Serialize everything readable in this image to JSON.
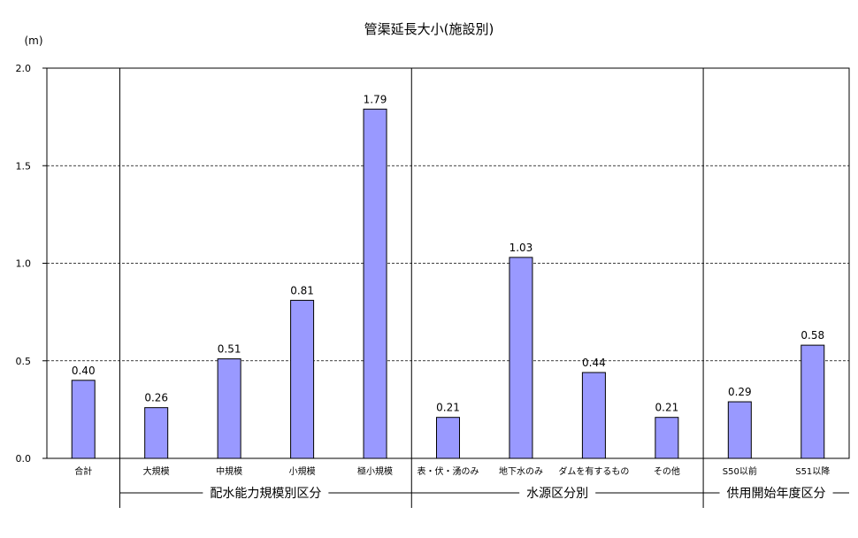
{
  "chart_data": {
    "type": "bar",
    "title": "管渠延長大小(施設別)",
    "unit_label": "(m)",
    "ylim": [
      0,
      2.0
    ],
    "y_ticks": [
      "0.0",
      "0.5",
      "1.0",
      "1.5",
      "2.0"
    ],
    "grid": "dashed horizontal",
    "colors": {
      "bar": "#9999ff",
      "bar_edge": "#000000",
      "grid": "#000000"
    },
    "categories": [
      "合計",
      "大規模",
      "中規模",
      "小規模",
      "極小規模",
      "表・伏・湧のみ",
      "地下水のみ",
      "ダムを有するもの",
      "その他",
      "S50以前",
      "S51以降"
    ],
    "values": [
      0.4,
      0.26,
      0.51,
      0.81,
      1.79,
      0.21,
      1.03,
      0.44,
      0.21,
      0.29,
      0.58
    ],
    "value_labels": [
      "0.40",
      "0.26",
      "0.51",
      "0.81",
      "1.79",
      "0.21",
      "1.03",
      "0.44",
      "0.21",
      "0.29",
      "0.58"
    ],
    "groups": [
      {
        "name": "配水能力規模別区分",
        "start": 1,
        "end": 4
      },
      {
        "name": "水源区分別",
        "start": 5,
        "end": 8
      },
      {
        "name": "供用開始年度区分",
        "start": 9,
        "end": 10
      }
    ]
  }
}
